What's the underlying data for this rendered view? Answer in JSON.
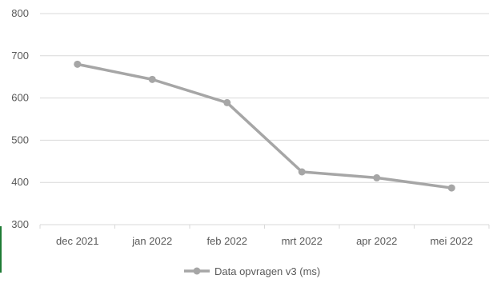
{
  "chart_data": {
    "type": "line",
    "categories": [
      "dec 2021",
      "jan 2022",
      "feb 2022",
      "mrt 2022",
      "apr 2022",
      "mei 2022"
    ],
    "series": [
      {
        "name": "Data opvragen v3 (ms)",
        "values": [
          680,
          644,
          589,
          425,
          411,
          387
        ]
      }
    ],
    "ylim": [
      300,
      800
    ],
    "yticks": [
      300,
      400,
      500,
      600,
      700,
      800
    ],
    "title": "",
    "xlabel": "",
    "ylabel": "",
    "grid": "horizontal",
    "legend": "bottom",
    "colors": {
      "series": "#a6a6a6",
      "grid": "#d9d9d9",
      "text": "#595959"
    }
  }
}
